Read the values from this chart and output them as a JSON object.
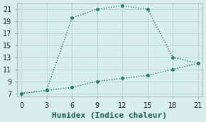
{
  "line1_x": [
    0,
    3,
    6,
    9,
    12,
    15,
    18,
    21
  ],
  "line1_y": [
    7,
    7.5,
    19.5,
    21,
    21.5,
    21.0,
    13.0,
    12
  ],
  "line2_x": [
    0,
    3,
    6,
    9,
    12,
    15,
    18,
    21
  ],
  "line2_y": [
    7,
    7.5,
    8.0,
    9.0,
    9.5,
    10.0,
    11.0,
    12
  ],
  "line_color": "#2a7d6e",
  "bg_color": "#d8eeeb",
  "grid_color": "#b8d8d4",
  "xlabel": "Humidex (Indice chaleur)",
  "xlim": [
    -0.5,
    21.5
  ],
  "ylim": [
    6.5,
    22.0
  ],
  "xticks": [
    0,
    3,
    6,
    9,
    12,
    15,
    18,
    21
  ],
  "yticks": [
    7,
    9,
    11,
    13,
    15,
    17,
    19,
    21
  ],
  "xlabel_fontsize": 8,
  "tick_fontsize": 7,
  "line_width": 1.0,
  "marker_size": 3
}
